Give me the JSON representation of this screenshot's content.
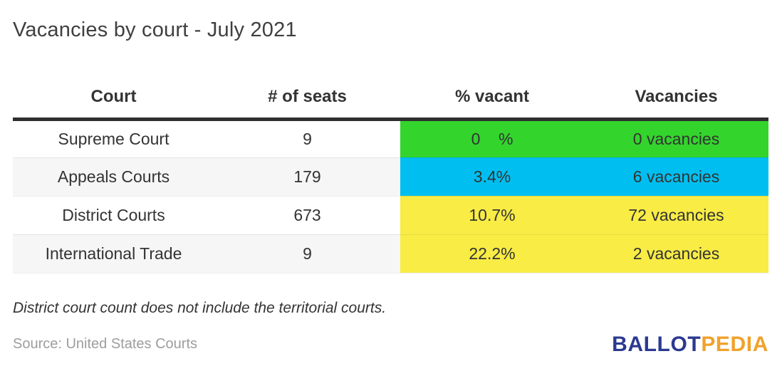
{
  "title": "Vacancies by court - July 2021",
  "table": {
    "headers": [
      "Court",
      "# of seats",
      "% vacant",
      "Vacancies"
    ],
    "rows": [
      {
        "court": "Supreme Court",
        "seats": "9",
        "pct": "0    %",
        "vacancies": "0 vacancies",
        "highlight": "#33d42c"
      },
      {
        "court": "Appeals Courts",
        "seats": "179",
        "pct": "3.4%",
        "vacancies": "6 vacancies",
        "highlight": "#00bff0"
      },
      {
        "court": "District Courts",
        "seats": "673",
        "pct": "10.7%",
        "vacancies": "72 vacancies",
        "highlight": "#f8ec45"
      },
      {
        "court": "International Trade",
        "seats": "9",
        "pct": "22.2%",
        "vacancies": "2 vacancies",
        "highlight": "#f8ec45"
      }
    ]
  },
  "note": "District court count does not include the territorial courts.",
  "source": "Source: United States Courts",
  "logo": {
    "part1": "BALLOT",
    "part2": "PEDIA"
  },
  "colors": {
    "logo-blue": "#2b3990",
    "logo-orange": "#f0a22c",
    "green": "#33d42c",
    "cyan": "#00bff0",
    "yellow": "#f8ec45",
    "header-rule": "#2e2e2e",
    "stripe": "#f6f6f6"
  },
  "chart_data": {
    "type": "table",
    "title": "Vacancies by court - July 2021",
    "columns": [
      "Court",
      "# of seats",
      "% vacant",
      "Vacancies"
    ],
    "rows": [
      {
        "court": "Supreme Court",
        "seats": 9,
        "pct_vacant": 0,
        "vacancies": 0
      },
      {
        "court": "Appeals Courts",
        "seats": 179,
        "pct_vacant": 3.4,
        "vacancies": 6
      },
      {
        "court": "District Courts",
        "seats": 673,
        "pct_vacant": 10.7,
        "vacancies": 72
      },
      {
        "court": "International Trade",
        "seats": 9,
        "pct_vacant": 22.2,
        "vacancies": 2
      }
    ],
    "row_highlight_colors": [
      "#33d42c",
      "#00bff0",
      "#f8ec45",
      "#f8ec45"
    ],
    "note": "District court count does not include the territorial courts.",
    "source": "United States Courts",
    "layout_hints": {
      "highlighted_columns": [
        "% vacant",
        "Vacancies"
      ],
      "striped_rows": true
    }
  }
}
